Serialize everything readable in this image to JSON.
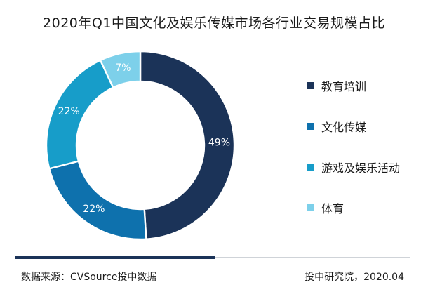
{
  "chart_data": {
    "type": "pie",
    "title": "2020年Q1中国文化及娱乐传媒市场各行业交易规模占比",
    "unit": "%",
    "donut": true,
    "categories": [
      "教育培训",
      "文化传媒",
      "游戏及娱乐活动",
      "体育"
    ],
    "values": [
      49,
      22,
      22,
      7
    ],
    "labels": [
      "49%",
      "22%",
      "22%",
      "7%"
    ],
    "colors": [
      "#1b3358",
      "#0e71ad",
      "#179dc9",
      "#7dd0ea"
    ],
    "legend_position": "right"
  },
  "footer": {
    "source": "数据来源：CVSource投中数据",
    "credit": "投中研究院，2020.04"
  }
}
